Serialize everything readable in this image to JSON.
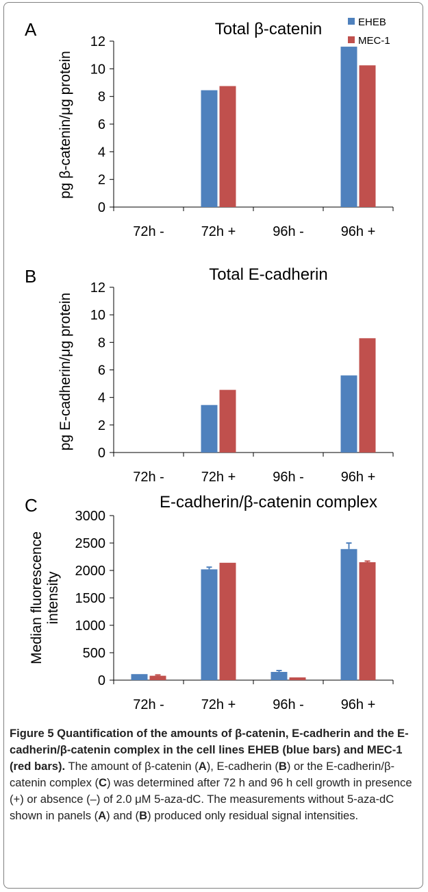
{
  "panels": [
    {
      "letter": "A",
      "chart_data": {
        "type": "bar",
        "title": "Total β-catenin",
        "ylabel": "pg β-catenin/μg protein",
        "xlabel": "",
        "categories": [
          "72h -",
          "72h +",
          "96h -",
          "96h +"
        ],
        "ylim": [
          0,
          12
        ],
        "yticks": [
          "0",
          "2",
          "4",
          "6",
          "8",
          "10",
          "12"
        ],
        "grid": false,
        "legend": "top-right",
        "series": [
          {
            "name": "EHEB",
            "color": "#4f81bd",
            "values": [
              0,
              8.45,
              0,
              11.6
            ]
          },
          {
            "name": "MEC-1",
            "color": "#c0504d",
            "values": [
              0,
              8.75,
              0,
              10.25
            ]
          }
        ]
      }
    },
    {
      "letter": "B",
      "chart_data": {
        "type": "bar",
        "title": "Total E-cadherin",
        "ylabel": "pg E-cadherin/μg protein",
        "xlabel": "",
        "categories": [
          "72h -",
          "72h +",
          "96h -",
          "96h +"
        ],
        "ylim": [
          0,
          12
        ],
        "yticks": [
          "0",
          "2",
          "4",
          "6",
          "8",
          "10",
          "12"
        ],
        "grid": false,
        "series": [
          {
            "name": "EHEB",
            "color": "#4f81bd",
            "values": [
              0,
              3.45,
              0,
              5.6
            ]
          },
          {
            "name": "MEC-1",
            "color": "#c0504d",
            "values": [
              0,
              4.55,
              0,
              8.3
            ]
          }
        ]
      }
    },
    {
      "letter": "C",
      "chart_data": {
        "type": "bar",
        "title": "E-cadherin/β-catenin complex",
        "ylabel_lines": [
          "Median fluorescence",
          "intensity"
        ],
        "xlabel": "",
        "categories": [
          "72h -",
          "72h +",
          "96h -",
          "96h +"
        ],
        "ylim": [
          0,
          3000
        ],
        "yticks": [
          "0",
          "500",
          "1000",
          "1500",
          "2000",
          "2500",
          "3000"
        ],
        "grid": false,
        "series": [
          {
            "name": "EHEB",
            "color": "#4f81bd",
            "values": [
              110,
              2020,
              150,
              2390
            ],
            "errors": [
              0,
              40,
              25,
              110
            ]
          },
          {
            "name": "MEC-1",
            "color": "#c0504d",
            "values": [
              80,
              2140,
              50,
              2150
            ],
            "errors": [
              15,
              0,
              0,
              20
            ]
          }
        ]
      }
    }
  ],
  "caption": {
    "title": "Figure 5 Quantification of the amounts of β-catenin, E-cadherin and the E-cadherin/β-catenin complex in the cell lines EHEB (blue bars) and MEC-1 (red bars).",
    "text_1": " The amount of β-catenin (",
    "ref_a1": "A",
    "text_2": "), E-cadherin (",
    "ref_b1": "B",
    "text_3": ") or the E-cadherin/β-catenin complex (",
    "ref_c1": "C",
    "text_4": ") was determined after 72 h and 96 h cell growth in presence (+) or absence (–) of 2.0 μM 5-aza-dC. The measurements without 5-aza-dC shown in panels (",
    "ref_a2": "A",
    "text_5": ") and (",
    "ref_b2": "B",
    "text_6": ") produced only residual signal intensities."
  }
}
